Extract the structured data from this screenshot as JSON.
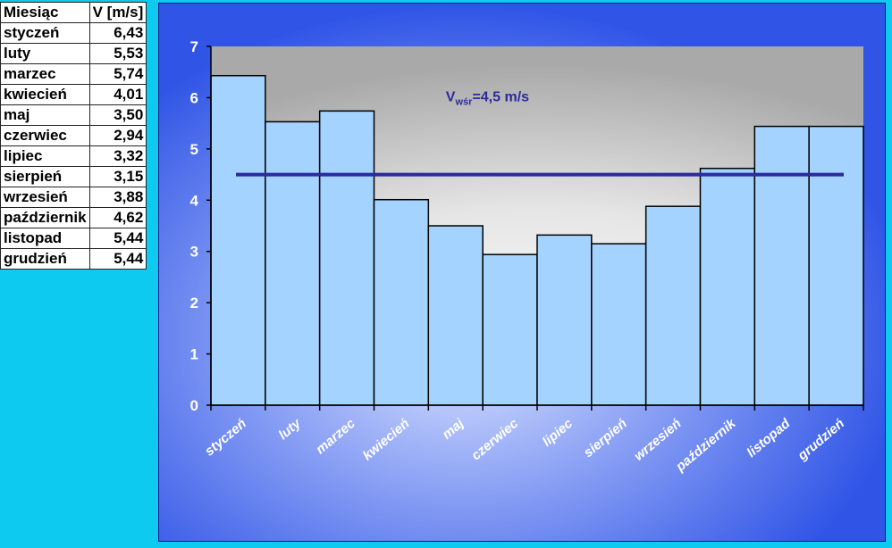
{
  "table": {
    "headers": [
      "Miesiąc",
      "V [m/s]"
    ],
    "rows": [
      [
        "styczeń",
        "6,43"
      ],
      [
        "luty",
        "5,53"
      ],
      [
        "marzec",
        "5,74"
      ],
      [
        "kwiecień",
        "4,01"
      ],
      [
        "maj",
        "3,50"
      ],
      [
        "czerwiec",
        "2,94"
      ],
      [
        "lipiec",
        "3,32"
      ],
      [
        "sierpień",
        "3,15"
      ],
      [
        "wrzesień",
        "3,88"
      ],
      [
        "październik",
        "4,62"
      ],
      [
        "listopad",
        "5,44"
      ],
      [
        "grudzień",
        "5,44"
      ]
    ]
  },
  "chart_data": {
    "type": "bar",
    "categories": [
      "styczeń",
      "luty",
      "marzec",
      "kwiecień",
      "maj",
      "czerwiec",
      "lipiec",
      "sierpień",
      "wrzesień",
      "październik",
      "listopad",
      "grudzień"
    ],
    "values": [
      6.43,
      5.53,
      5.74,
      4.01,
      3.5,
      2.94,
      3.32,
      3.15,
      3.88,
      4.62,
      5.44,
      5.44
    ],
    "ylim": [
      0,
      7
    ],
    "yticks": [
      "0",
      "1",
      "2",
      "3",
      "4",
      "5",
      "6",
      "7"
    ],
    "reference_line": {
      "value": 4.5,
      "label_main": "V",
      "label_sub": "wśr",
      "label_rest": "=4,5 m/s"
    },
    "grid": false,
    "legend": "none"
  },
  "colors": {
    "page_bg": "#0ccaf0",
    "frame_bg": "#2f54e6",
    "bar_fill": "#a5d3ff",
    "bar_stroke": "#000000",
    "mean_line": "#2b2b9c",
    "axis_text": "#ffffff"
  }
}
